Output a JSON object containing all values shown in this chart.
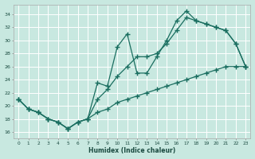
{
  "xlabel": "Humidex (Indice chaleur)",
  "xlim": [
    -0.5,
    23.5
  ],
  "ylim": [
    15,
    35.5
  ],
  "yticks": [
    16,
    18,
    20,
    22,
    24,
    26,
    28,
    30,
    32,
    34
  ],
  "xticks": [
    0,
    1,
    2,
    3,
    4,
    5,
    6,
    7,
    8,
    9,
    10,
    11,
    12,
    13,
    14,
    15,
    16,
    17,
    18,
    19,
    20,
    21,
    22,
    23
  ],
  "bg_color": "#c8e8e0",
  "line_color": "#1a6e60",
  "y_zigzag": [
    21,
    19.5,
    19,
    18,
    17.5,
    16.5,
    17.5,
    18,
    23.5,
    23,
    29,
    31,
    25,
    25,
    27.5,
    30,
    33,
    34.5,
    33,
    32.5,
    32,
    31.5,
    29.5,
    26
  ],
  "y_mid": [
    21,
    19.5,
    19,
    18,
    17.5,
    16.5,
    17.5,
    18,
    21,
    22.5,
    24.5,
    26,
    27.5,
    27.5,
    28,
    29.5,
    31.5,
    33.5,
    33,
    32.5,
    32,
    31.5,
    29.5,
    26
  ],
  "y_lower": [
    21,
    19.5,
    19,
    18,
    17.5,
    16.5,
    17.5,
    18,
    19,
    19.5,
    20.5,
    21,
    21.5,
    22,
    22.5,
    23,
    23.5,
    24,
    24.5,
    25,
    25.5,
    26,
    26,
    26
  ]
}
